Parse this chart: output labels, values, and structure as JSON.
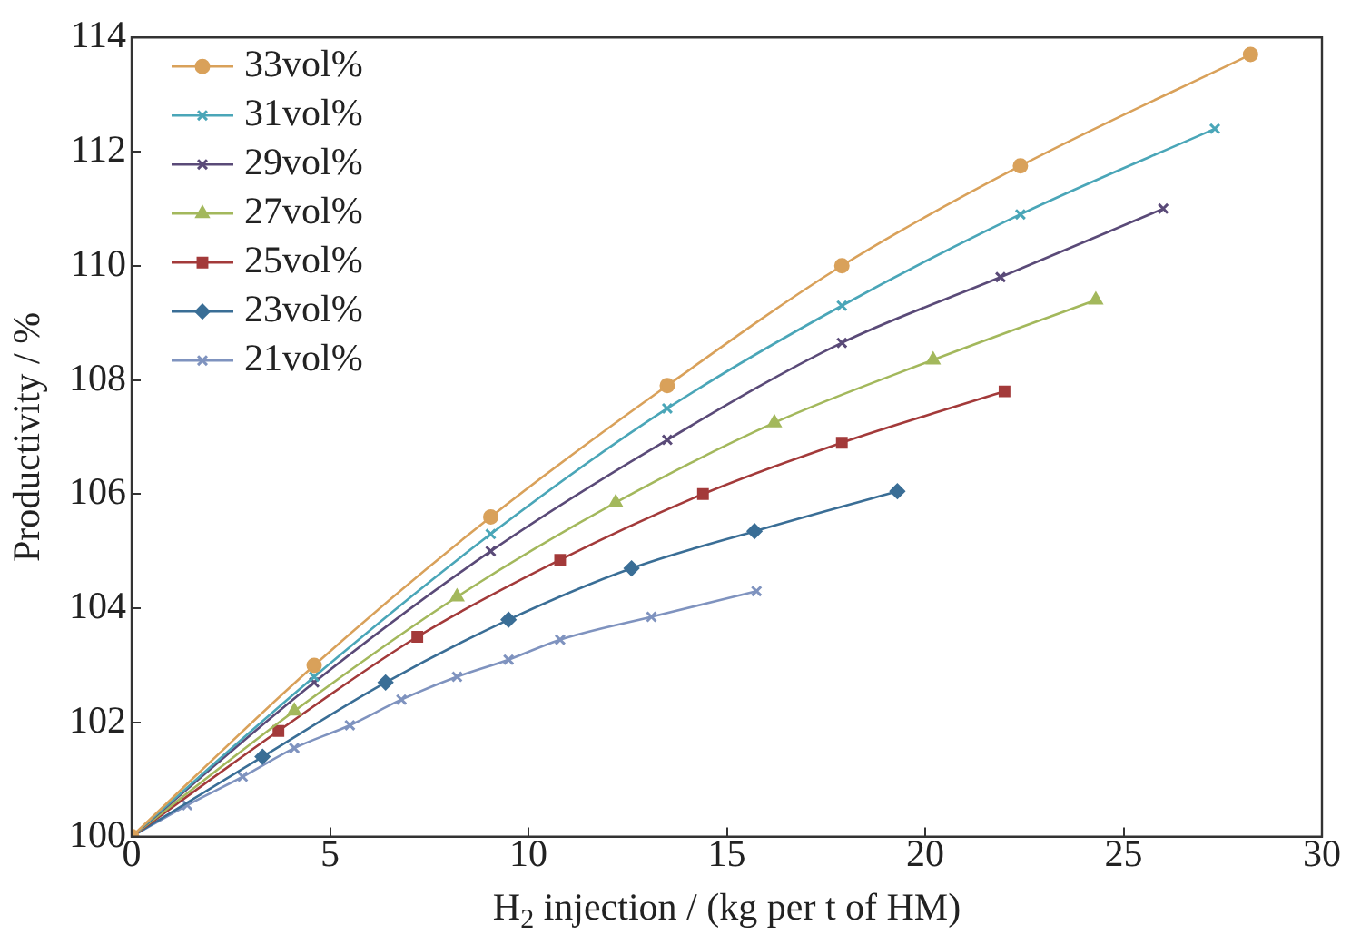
{
  "chart_data": {
    "type": "line",
    "xlabel": "H$_{2}$ injection / (kg per t of HM)",
    "ylabel": "Productivity / %",
    "xlim": [
      0,
      30
    ],
    "xticks": [
      0,
      5,
      10,
      15,
      20,
      25,
      30
    ],
    "ylim": [
      100,
      114
    ],
    "yticks": [
      100,
      102,
      104,
      106,
      108,
      110,
      112,
      114
    ],
    "grid": false,
    "legend": "top left",
    "series": [
      {
        "name": "33vol%",
        "color": "#d9a15a",
        "marker": "circle",
        "x": [
          0,
          4.6,
          9.05,
          13.5,
          17.9,
          22.4,
          28.2
        ],
        "values": [
          100,
          103.0,
          105.6,
          107.9,
          110.0,
          111.75,
          113.7
        ]
      },
      {
        "name": "31vol%",
        "color": "#4aa6b8",
        "marker": "cross",
        "x": [
          0,
          4.6,
          9.05,
          13.5,
          17.9,
          22.4,
          27.3
        ],
        "values": [
          100,
          102.8,
          105.3,
          107.5,
          109.3,
          110.9,
          112.4
        ]
      },
      {
        "name": "29vol%",
        "color": "#5a4a78",
        "marker": "cross",
        "x": [
          0,
          4.6,
          9.05,
          13.5,
          17.9,
          21.9,
          26.0
        ],
        "values": [
          100,
          102.7,
          105.0,
          106.95,
          108.65,
          109.8,
          111.0
        ]
      },
      {
        "name": "27vol%",
        "color": "#a3b85c",
        "marker": "triangle",
        "x": [
          0,
          4.1,
          8.2,
          12.2,
          16.2,
          20.2,
          24.3
        ],
        "values": [
          100,
          102.2,
          104.2,
          105.85,
          107.25,
          108.35,
          109.4
        ]
      },
      {
        "name": "25vol%",
        "color": "#a33a3a",
        "marker": "square",
        "x": [
          0,
          3.7,
          7.2,
          10.8,
          14.4,
          17.9,
          22.0
        ],
        "values": [
          100,
          101.85,
          103.5,
          104.85,
          106.0,
          106.9,
          107.8
        ]
      },
      {
        "name": "23vol%",
        "color": "#3a6e96",
        "marker": "diamond",
        "x": [
          0,
          3.3,
          6.4,
          9.5,
          12.6,
          15.7,
          19.3
        ],
        "values": [
          100,
          101.4,
          102.7,
          103.8,
          104.7,
          105.35,
          106.05
        ]
      },
      {
        "name": "21vol%",
        "color": "#7f93bf",
        "marker": "cross",
        "x": [
          0,
          1.4,
          2.8,
          4.1,
          5.5,
          6.8,
          8.2,
          9.5,
          10.8,
          13.1,
          15.75
        ],
        "values": [
          100,
          100.55,
          101.05,
          101.55,
          101.95,
          102.4,
          102.8,
          103.1,
          103.45,
          103.85,
          104.3
        ]
      }
    ]
  }
}
